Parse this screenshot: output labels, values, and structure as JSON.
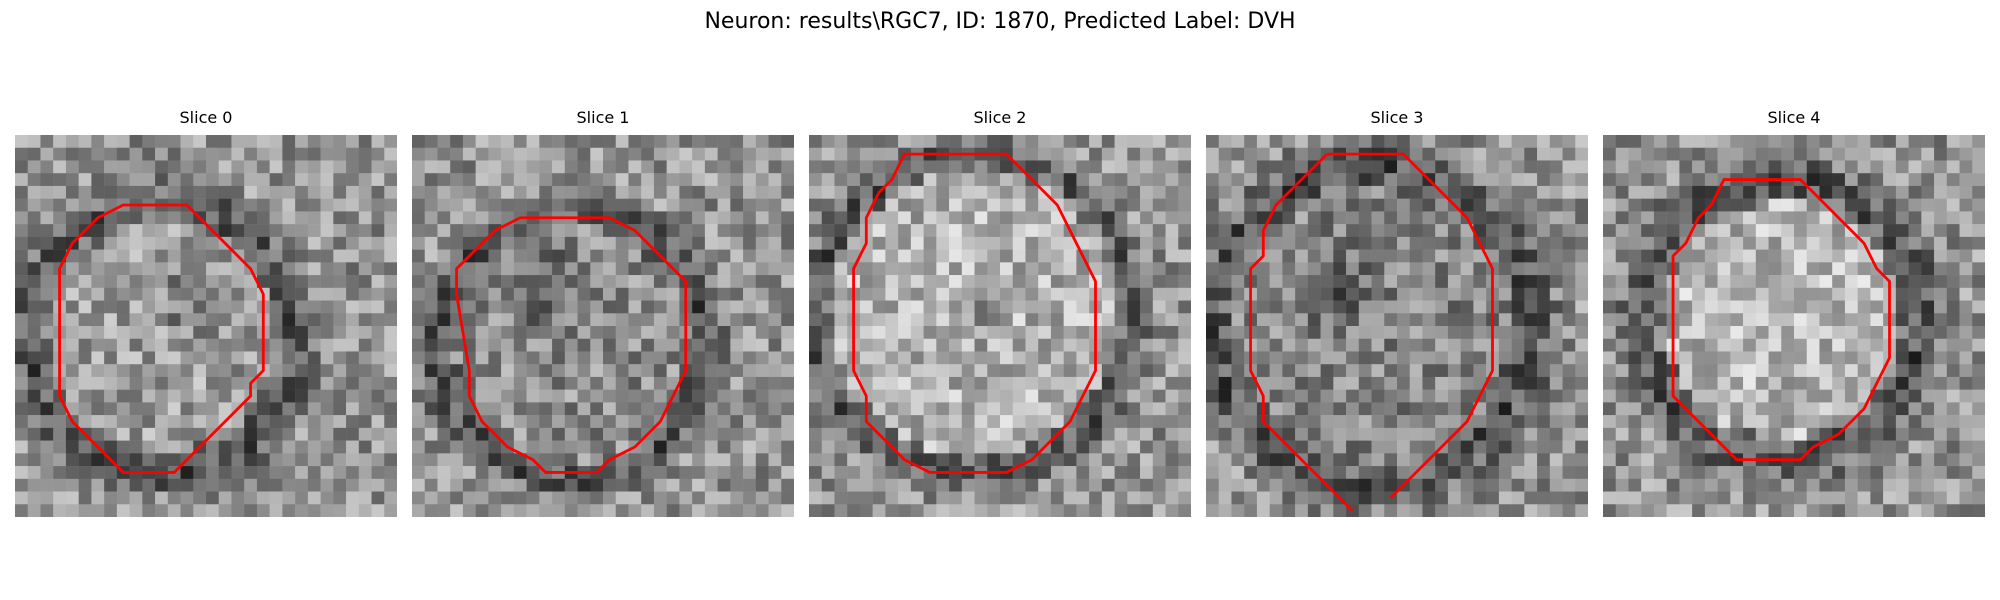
{
  "figure": {
    "title": "Neuron: results\\RGC7, ID: 1870, Predicted Label: DVH"
  },
  "panels": [
    {
      "title": "Slice 0",
      "outline": [
        [
          9.5,
          5.5
        ],
        [
          13.5,
          5.5
        ],
        [
          14.5,
          6.5
        ],
        [
          15.5,
          7.5
        ],
        [
          16.5,
          8.5
        ],
        [
          17.5,
          9.5
        ],
        [
          18.5,
          10.5
        ],
        [
          19.5,
          12.5
        ],
        [
          19.5,
          18.5
        ],
        [
          18.5,
          19.5
        ],
        [
          18.5,
          20.5
        ],
        [
          17.5,
          21.5
        ],
        [
          16.5,
          22.5
        ],
        [
          15.5,
          23.5
        ],
        [
          14.5,
          24.5
        ],
        [
          13.5,
          25.5
        ],
        [
          12.5,
          26.5
        ],
        [
          8.5,
          26.5
        ],
        [
          7.5,
          25.5
        ],
        [
          6.5,
          24.5
        ],
        [
          5.5,
          23.5
        ],
        [
          4.5,
          22.5
        ],
        [
          3.5,
          20.5
        ],
        [
          3.5,
          18.5
        ],
        [
          3.5,
          12.5
        ],
        [
          3.5,
          10.5
        ],
        [
          4.5,
          8.5
        ],
        [
          5.5,
          7.5
        ],
        [
          6.5,
          6.5
        ],
        [
          8.5,
          5.5
        ]
      ]
    },
    {
      "title": "Slice 1",
      "outline": [
        [
          8.5,
          6.5
        ],
        [
          15.5,
          6.5
        ],
        [
          17.5,
          7.5
        ],
        [
          18.5,
          8.5
        ],
        [
          19.5,
          9.5
        ],
        [
          21.5,
          11.5
        ],
        [
          21.5,
          14.5
        ],
        [
          21.5,
          18.5
        ],
        [
          20.5,
          20.5
        ],
        [
          19.5,
          22.5
        ],
        [
          18.5,
          23.5
        ],
        [
          17.5,
          24.5
        ],
        [
          15.5,
          25.5
        ],
        [
          14.5,
          26.5
        ],
        [
          10.5,
          26.5
        ],
        [
          9.5,
          25.5
        ],
        [
          7.5,
          24.5
        ],
        [
          6.5,
          23.5
        ],
        [
          5.5,
          22.5
        ],
        [
          4.5,
          20.5
        ],
        [
          4.5,
          18.5
        ],
        [
          3.5,
          12.5
        ],
        [
          3.5,
          10.5
        ],
        [
          4.5,
          9.5
        ],
        [
          5.5,
          8.5
        ],
        [
          6.5,
          7.5
        ]
      ]
    },
    {
      "title": "Slice 2",
      "outline": [
        [
          7.5,
          1.5
        ],
        [
          15.5,
          1.5
        ],
        [
          16.5,
          2.5
        ],
        [
          17.5,
          3.5
        ],
        [
          18.5,
          4.5
        ],
        [
          19.5,
          5.5
        ],
        [
          20.5,
          7.5
        ],
        [
          21.5,
          9.5
        ],
        [
          22.5,
          11.5
        ],
        [
          22.5,
          18.5
        ],
        [
          21.5,
          20.5
        ],
        [
          20.5,
          22.5
        ],
        [
          19.5,
          23.5
        ],
        [
          18.5,
          24.5
        ],
        [
          17.5,
          25.5
        ],
        [
          15.5,
          26.5
        ],
        [
          9.5,
          26.5
        ],
        [
          7.5,
          25.5
        ],
        [
          6.5,
          24.5
        ],
        [
          5.5,
          23.5
        ],
        [
          4.5,
          22.5
        ],
        [
          4.5,
          20.5
        ],
        [
          3.5,
          18.5
        ],
        [
          3.5,
          14.5
        ],
        [
          3.5,
          10.5
        ],
        [
          4.5,
          8.5
        ],
        [
          4.5,
          6.5
        ],
        [
          5.5,
          4.5
        ],
        [
          6.5,
          3.5
        ]
      ]
    },
    {
      "title": "Slice 3",
      "outline": [
        [
          9.5,
          1.5
        ],
        [
          15.5,
          1.5
        ],
        [
          16.5,
          2.5
        ],
        [
          17.5,
          3.5
        ],
        [
          18.5,
          4.5
        ],
        [
          19.5,
          5.5
        ],
        [
          20.5,
          6.5
        ],
        [
          21.5,
          8.5
        ],
        [
          22.5,
          10.5
        ],
        [
          22.5,
          18.5
        ],
        [
          21.5,
          20.5
        ],
        [
          20.5,
          22.5
        ],
        [
          19.5,
          23.5
        ],
        [
          18.5,
          24.5
        ],
        [
          17.5,
          25.5
        ],
        [
          16.5,
          26.5
        ],
        [
          15.5,
          27.5
        ],
        [
          14.5,
          28.5
        ]
      ]
    },
    {
      "title": "Slice 4",
      "outline": [
        [
          9.5,
          3.5
        ],
        [
          15.5,
          3.5
        ],
        [
          16.5,
          4.5
        ],
        [
          17.5,
          5.5
        ],
        [
          18.5,
          6.5
        ],
        [
          19.5,
          7.5
        ],
        [
          20.5,
          8.5
        ],
        [
          21.5,
          10.5
        ],
        [
          22.5,
          11.5
        ],
        [
          22.5,
          17.5
        ],
        [
          21.5,
          19.5
        ],
        [
          20.5,
          21.5
        ],
        [
          19.5,
          22.5
        ],
        [
          18.5,
          23.5
        ],
        [
          16.5,
          24.5
        ],
        [
          15.5,
          25.5
        ],
        [
          10.5,
          25.5
        ],
        [
          9.5,
          24.5
        ],
        [
          8.5,
          23.5
        ],
        [
          7.5,
          22.5
        ],
        [
          6.5,
          21.5
        ],
        [
          5.5,
          20.5
        ],
        [
          5.5,
          18.5
        ],
        [
          5.5,
          11.5
        ],
        [
          5.5,
          9.5
        ],
        [
          6.5,
          8.5
        ],
        [
          7.5,
          6.5
        ],
        [
          8.5,
          5.5
        ]
      ]
    }
  ],
  "colors": {
    "outline": "#ff0000",
    "background": "#ffffff"
  }
}
